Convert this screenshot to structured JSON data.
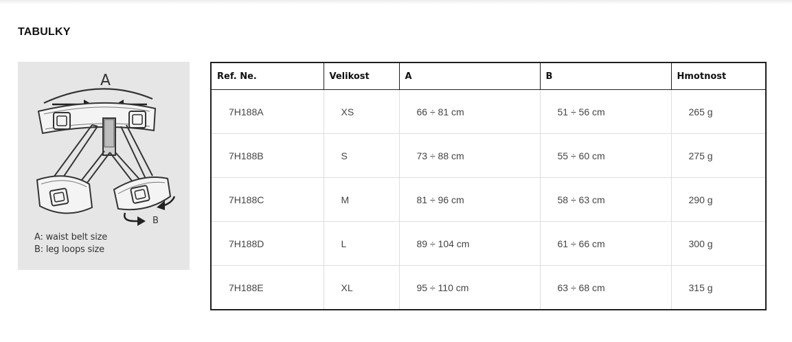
{
  "section": {
    "title": "TABULKY"
  },
  "figure": {
    "label_a": "A",
    "label_b": "B",
    "legend_a": "A: waist belt size",
    "legend_b": "B: leg loops size",
    "icon": "harness-diagram-icon"
  },
  "table": {
    "headers": [
      "Ref. Ne.",
      "Velikost",
      "A",
      "B",
      "Hmotnost"
    ],
    "rows": [
      [
        "7H188A",
        "XS",
        "66 ÷ 81 cm",
        "51 ÷ 56 cm",
        "265 g"
      ],
      [
        "7H188B",
        "S",
        "73 ÷ 88 cm",
        "55 ÷ 60 cm",
        "275 g"
      ],
      [
        "7H188C",
        "M",
        "81 ÷ 96 cm",
        "58 ÷ 63 cm",
        "290 g"
      ],
      [
        "7H188D",
        "L",
        "89 ÷ 104 cm",
        "61 ÷ 66 cm",
        "300 g"
      ],
      [
        "7H188E",
        "XL",
        "95 ÷ 110 cm",
        "63 ÷ 68 cm",
        "315 g"
      ]
    ]
  },
  "colors": {
    "figure_bg": "#e6e6e7",
    "table_border": "#1e1e1e",
    "row_divider": "#dddddd"
  }
}
